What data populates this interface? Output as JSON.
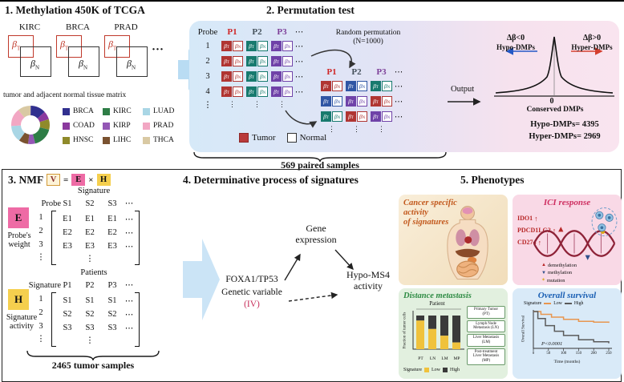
{
  "panel1": {
    "title": "1. Methylation 450K of TCGA",
    "matrix_labels": [
      "KIRC",
      "BRCA",
      "PRAD"
    ],
    "dots": "···",
    "beta": "β",
    "sub_t": "T",
    "sub_n": "N",
    "caption": "tumor and adjacent normal tissue matrix",
    "cancer_legend": [
      {
        "label": "BRCA",
        "color": "#31308f"
      },
      {
        "label": "COAD",
        "color": "#8b3a9e"
      },
      {
        "label": "HNSC",
        "color": "#8f8a2a"
      },
      {
        "label": "KIRC",
        "color": "#2e7d46"
      },
      {
        "label": "KIRP",
        "color": "#9457b5"
      },
      {
        "label": "LIHC",
        "color": "#7a5230"
      },
      {
        "label": "LUAD",
        "color": "#a9d6e5"
      },
      {
        "label": "PRAD",
        "color": "#f2a7c3"
      },
      {
        "label": "THCA",
        "color": "#d9c9a3"
      }
    ],
    "donut_fractions": [
      0.13,
      0.07,
      0.09,
      0.17,
      0.06,
      0.08,
      0.14,
      0.15,
      0.11
    ]
  },
  "panel2": {
    "title": "2. Permutation test",
    "probe_header": "Probe",
    "beta": "β",
    "sub_t": "T",
    "sub_n": "N",
    "vdots": "⋮",
    "palette": {
      "red": "#b03532",
      "teal": "#177a6e",
      "blue": "#2f55a4",
      "purple": "#6f42a8"
    },
    "matrix1": {
      "headers": [
        {
          "label": "P1",
          "color": "#cf2727"
        },
        {
          "label": "P2",
          "color": "#44505a"
        },
        {
          "label": "P3",
          "color": "#7d3f98"
        }
      ],
      "dots": "⋯",
      "rows": [
        {
          "label": "1",
          "cols": [
            "red",
            "teal",
            "purple"
          ]
        },
        {
          "label": "2",
          "cols": [
            "red",
            "teal",
            "purple"
          ]
        },
        {
          "label": "3",
          "cols": [
            "red",
            "teal",
            "purple"
          ]
        },
        {
          "label": "4",
          "cols": [
            "red",
            "teal",
            "purple"
          ]
        }
      ]
    },
    "permutation_label": "Random permutation",
    "permutation_n": "(N=1000)",
    "matrix2": {
      "headers": [
        {
          "label": "P1",
          "color": "#cf2727"
        },
        {
          "label": "P2",
          "color": "#44505a"
        },
        {
          "label": "P3",
          "color": "#7d3f98"
        }
      ],
      "dots": "⋯",
      "rows": [
        {
          "label": "",
          "cols": [
            "red",
            "blue",
            "teal"
          ]
        },
        {
          "label": "",
          "cols": [
            "blue",
            "purple",
            "red"
          ]
        },
        {
          "label": "",
          "cols": [
            "teal",
            "red",
            "purple"
          ]
        }
      ]
    },
    "legend": {
      "tumor": "Tumor",
      "normal": "Normal"
    },
    "output_label": "Output",
    "dist": {
      "hypo_delta": "Δβ<0",
      "hypo_name": "Hypo-DMPs",
      "hyper_delta": "Δβ>0",
      "hyper_name": "Hyper-DMPs",
      "zero": "0",
      "conserved": "Conserved DMPs",
      "hypo_count": "Hypo-DMPs= 4395",
      "hyper_count": "Hyper-DMPs= 2969"
    },
    "paired_samples": "569 paired samples"
  },
  "panel3": {
    "title": "3. NMF",
    "formula": {
      "v": "V",
      "eq": "=",
      "e": "E",
      "times": "×",
      "h": "H"
    },
    "e_label": "E",
    "e_caption": "Probe's\nweight",
    "h_label": "H",
    "h_caption": "Signature\nactivity",
    "signature_header": "Signature",
    "patients_header": "Patients",
    "e_matrix": {
      "row_axis": "Probe",
      "cols": [
        "S1",
        "S2",
        "S3"
      ],
      "dots": "⋯",
      "vdots": "⋮",
      "rows": [
        {
          "label": "1",
          "cells": [
            "E1",
            "E1",
            "E1"
          ]
        },
        {
          "label": "2",
          "cells": [
            "E2",
            "E2",
            "E2"
          ]
        },
        {
          "label": "3",
          "cells": [
            "E3",
            "E3",
            "E3"
          ]
        }
      ]
    },
    "h_matrix": {
      "row_axis": "Signature",
      "cols": [
        "P1",
        "P2",
        "P3"
      ],
      "dots": "⋯",
      "vdots": "⋮",
      "rows": [
        {
          "label": "1",
          "cells": [
            "S1",
            "S1",
            "S1"
          ]
        },
        {
          "label": "2",
          "cells": [
            "S2",
            "S2",
            "S2"
          ]
        },
        {
          "label": "3",
          "cells": [
            "S3",
            "S3",
            "S3"
          ]
        }
      ]
    },
    "tumor_samples": "2465 tumor samples"
  },
  "panel4": {
    "title": "4. Determinative process of signatures",
    "gene_expression": "Gene\nexpression",
    "genetic_line1": "FOXA1/TP53",
    "genetic_line2": "Genetic variable",
    "genetic_iv": "(IV)",
    "iv_color": "#c72e5a",
    "hypo_ms4": "Hypo-MS4\nactivity"
  },
  "panel5": {
    "title": "5. Phenotypes",
    "cards": {
      "activity": {
        "title": "Cancer specific\nactivity\nof signatures",
        "title_color": "#c2581c"
      },
      "ici": {
        "title": "ICI response",
        "title_color": "#ce2e60",
        "genes": [
          "IDO1",
          "PDCD1LG2",
          "CD274"
        ],
        "arrow": "↑",
        "legend": [
          {
            "symbol": "▲",
            "label": "demethylation"
          },
          {
            "symbol": "▼",
            "label": "methylation"
          },
          {
            "symbol": "✶",
            "label": "mutation"
          }
        ]
      },
      "metastasis": {
        "title": "Distance metastasis",
        "title_color": "#2e8b44",
        "patient_header": "Patient",
        "ylabel": "Fraction of tumor cells",
        "categories": [
          "PT",
          "LN",
          "LM",
          "MP"
        ],
        "low_fracs": [
          0.85,
          0.6,
          0.4,
          0.2
        ],
        "low_color": "#f0c23c",
        "high_color": "#3a3a3a",
        "legend_label": "Signature",
        "legend_low": "Low",
        "legend_high": "High",
        "boxes": [
          "Primary Tumor\n(PT)",
          "Lymph Node\nMetastasis (LN)",
          "Liver Metastasis\n(LM)",
          "Post-treatment\nLiver Metastasis\n(MP)"
        ]
      },
      "survival": {
        "title": "Overall survival",
        "title_color": "#1a5fb4",
        "legend_label": "Signature",
        "legend_low": "Low",
        "legend_high": "High",
        "low_color": "#e8964f",
        "high_color": "#5a5a5a",
        "pvalue": "P<0.0001",
        "ylabel": "Overall Survival",
        "xlabel": "Time (months)",
        "xticks": [
          "0",
          "50",
          "100",
          "150",
          "200",
          "250"
        ],
        "low_points": [
          [
            0,
            1
          ],
          [
            25,
            0.96
          ],
          [
            60,
            0.92
          ],
          [
            100,
            0.89
          ],
          [
            150,
            0.86
          ],
          [
            200,
            0.85
          ],
          [
            250,
            0.84
          ]
        ],
        "high_points": [
          [
            0,
            1
          ],
          [
            15,
            0.9
          ],
          [
            40,
            0.8
          ],
          [
            70,
            0.72
          ],
          [
            100,
            0.66
          ],
          [
            150,
            0.6
          ],
          [
            200,
            0.57
          ],
          [
            250,
            0.55
          ]
        ]
      }
    }
  }
}
